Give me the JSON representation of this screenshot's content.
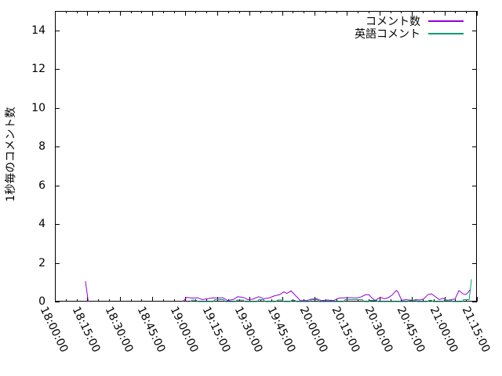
{
  "chart_data": {
    "type": "line",
    "title": "",
    "xlabel": "",
    "ylabel": "1秒毎のコメント数",
    "ylim": [
      0,
      15
    ],
    "yticks": [
      0,
      2,
      4,
      6,
      8,
      10,
      12,
      14
    ],
    "x_range_minutes": [
      0,
      195
    ],
    "x_major_interval_minutes": 15,
    "x_minor_interval_minutes": 5,
    "xtick_labels": [
      "18:00:00",
      "18:15:00",
      "18:30:00",
      "18:45:00",
      "19:00:00",
      "19:15:00",
      "19:30:00",
      "19:45:00",
      "20:00:00",
      "20:15:00",
      "20:30:00",
      "20:45:00",
      "21:00:00",
      "21:15:00"
    ],
    "grid": "off",
    "legend_position": "top-right-inside",
    "legend": [
      {
        "label": "コメント数",
        "color": "#9400d3"
      },
      {
        "label": "英語コメント",
        "color": "#009e73"
      }
    ],
    "series": [
      {
        "name": "コメント数",
        "color": "#9400d3",
        "x_unit": "minutes_after_18:00",
        "segments": [
          [
            [
              14.1,
              1.05
            ],
            [
              15.4,
              0
            ]
          ],
          [
            [
              59.1,
              0
            ],
            [
              60.9,
              0.22
            ],
            [
              63.4,
              0.18
            ],
            [
              66.0,
              0.2
            ],
            [
              68.1,
              0.1
            ],
            [
              70.7,
              0.15
            ],
            [
              73.2,
              0.2
            ],
            [
              75.4,
              0.18
            ],
            [
              77.6,
              0.2
            ],
            [
              79.7,
              0.06
            ],
            [
              82.3,
              0.1
            ],
            [
              84.4,
              0.25
            ],
            [
              87.0,
              0.22
            ],
            [
              89.2,
              0.1
            ],
            [
              91.3,
              0.12
            ],
            [
              94.2,
              0.25
            ],
            [
              96.4,
              0.15
            ],
            [
              98.9,
              0.18
            ],
            [
              101.5,
              0.3
            ],
            [
              103.7,
              0.35
            ],
            [
              105.8,
              0.5
            ],
            [
              107.3,
              0.42
            ],
            [
              109.1,
              0.55
            ],
            [
              111.3,
              0.3
            ],
            [
              113.4,
              0.05
            ],
            [
              116.0,
              0.05
            ],
            [
              118.5,
              0.12
            ],
            [
              120.7,
              0.15
            ],
            [
              123.2,
              0.05
            ],
            [
              126.1,
              0.08
            ],
            [
              128.7,
              0.05
            ],
            [
              131.2,
              0.18
            ],
            [
              134.1,
              0.2
            ],
            [
              137.0,
              0.2
            ],
            [
              139.5,
              0.18
            ],
            [
              141.7,
              0.25
            ],
            [
              143.5,
              0.35
            ],
            [
              145.0,
              0.36
            ],
            [
              146.4,
              0.2
            ],
            [
              147.9,
              0.06
            ],
            [
              150.4,
              0.22
            ],
            [
              152.2,
              0.15
            ],
            [
              154.0,
              0.2
            ],
            [
              155.8,
              0.33
            ],
            [
              157.7,
              0.57
            ],
            [
              158.4,
              0.53
            ],
            [
              160.2,
              0.07
            ],
            [
              162.4,
              0.1
            ],
            [
              164.6,
              0.06
            ],
            [
              166.7,
              0.1
            ],
            [
              168.5,
              0.08
            ],
            [
              170.3,
              0.13
            ],
            [
              172.5,
              0.37
            ],
            [
              174.0,
              0.4
            ],
            [
              175.8,
              0.26
            ],
            [
              177.6,
              0.1
            ],
            [
              179.4,
              0.17
            ],
            [
              181.2,
              0.07
            ],
            [
              183.0,
              0.1
            ],
            [
              184.9,
              0.13
            ],
            [
              186.7,
              0.57
            ],
            [
              188.5,
              0.4
            ],
            [
              189.9,
              0.36
            ],
            [
              191.0,
              0.48
            ],
            [
              191.7,
              0.6
            ]
          ]
        ]
      },
      {
        "name": "英語コメント",
        "color": "#009e73",
        "x_unit": "minutes_after_18:00",
        "segments": [
          [
            [
              62.7,
              0
            ],
            [
              63.4,
              0.08
            ],
            [
              65.2,
              0.08
            ],
            [
              66.0,
              0
            ],
            [
              73.2,
              0
            ],
            [
              73.9,
              0.1
            ],
            [
              77.9,
              0.1
            ],
            [
              78.7,
              0
            ],
            [
              83.4,
              0
            ],
            [
              84.1,
              0.08
            ],
            [
              87.0,
              0.08
            ],
            [
              87.7,
              0
            ],
            [
              93.5,
              0
            ],
            [
              94.2,
              0.1
            ],
            [
              96.4,
              0.1
            ],
            [
              97.1,
              0
            ],
            [
              102.2,
              0
            ],
            [
              102.9,
              0.08
            ],
            [
              105.1,
              0.08
            ],
            [
              105.8,
              0
            ],
            [
              108.7,
              0
            ],
            [
              109.5,
              0.06
            ],
            [
              110.9,
              0.06
            ],
            [
              111.6,
              0
            ],
            [
              117.8,
              0
            ],
            [
              118.5,
              0.1
            ],
            [
              121.4,
              0.1
            ],
            [
              122.1,
              0
            ],
            [
              133.4,
              0
            ],
            [
              134.1,
              0.1
            ],
            [
              142.1,
              0.1
            ],
            [
              142.8,
              0
            ],
            [
              145.0,
              0
            ],
            [
              145.7,
              0.06
            ],
            [
              148.6,
              0.06
            ],
            [
              149.3,
              0
            ],
            [
              163.1,
              0
            ],
            [
              163.8,
              0.08
            ],
            [
              166.7,
              0.08
            ],
            [
              167.4,
              0
            ],
            [
              172.2,
              0
            ],
            [
              172.9,
              0.06
            ],
            [
              174.0,
              0.06
            ],
            [
              174.7,
              0
            ],
            [
              179.4,
              0
            ],
            [
              180.1,
              0.08
            ],
            [
              183.0,
              0.08
            ],
            [
              183.7,
              0
            ],
            [
              188.5,
              0
            ],
            [
              188.8,
              0.1
            ],
            [
              191.0,
              0.1
            ],
            [
              191.4,
              0.1
            ],
            [
              192.5,
              1.15
            ]
          ]
        ]
      }
    ]
  }
}
